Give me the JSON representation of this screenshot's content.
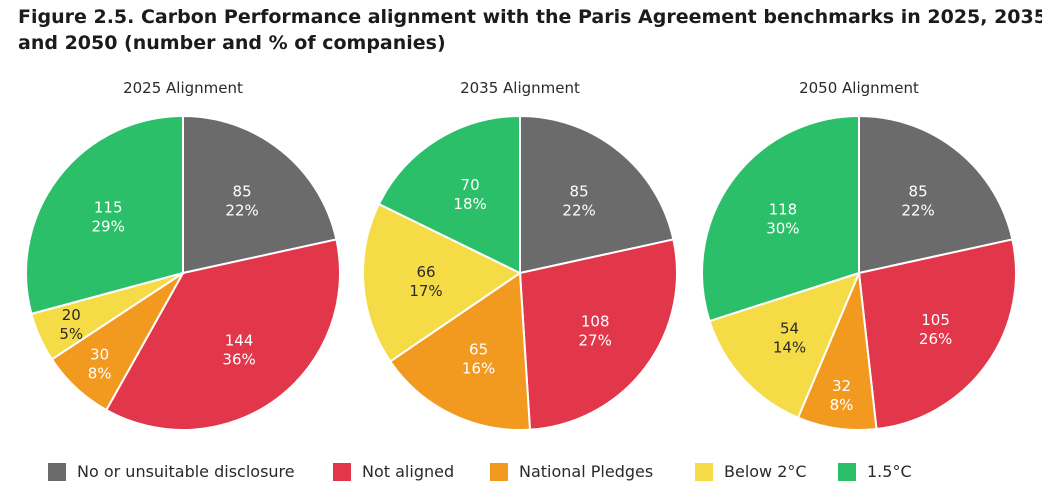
{
  "figure": {
    "title_line1": "Figure 2.5. Carbon Performance alignment with the Paris Agreement benchmarks in 2025, 2035",
    "title_line2": "and 2050 (number and % of companies)"
  },
  "colors": {
    "no_disclosure": "#6b6b6b",
    "not_aligned": "#e2374a",
    "national_pledges": "#f29a1f",
    "below_2c": "#f5dc47",
    "one_point_five": "#2cbf6a"
  },
  "chart_data": [
    {
      "type": "pie",
      "title": "2025 Alignment",
      "start": "12 o'clock, clockwise",
      "slices": [
        {
          "category": "No or unsuitable disclosure",
          "value": 85,
          "percent": "22%"
        },
        {
          "category": "Not aligned",
          "value": 144,
          "percent": "36%"
        },
        {
          "category": "National Pledges",
          "value": 30,
          "percent": "8%"
        },
        {
          "category": "Below 2°C",
          "value": 20,
          "percent": "5%"
        },
        {
          "category": "1.5°C",
          "value": 115,
          "percent": "29%"
        }
      ]
    },
    {
      "type": "pie",
      "title": "2035 Alignment",
      "start": "12 o'clock, clockwise",
      "slices": [
        {
          "category": "No or unsuitable disclosure",
          "value": 85,
          "percent": "22%"
        },
        {
          "category": "Not aligned",
          "value": 108,
          "percent": "27%"
        },
        {
          "category": "National Pledges",
          "value": 65,
          "percent": "16%"
        },
        {
          "category": "Below 2°C",
          "value": 66,
          "percent": "17%"
        },
        {
          "category": "1.5°C",
          "value": 70,
          "percent": "18%"
        }
      ]
    },
    {
      "type": "pie",
      "title": "2050 Alignment",
      "start": "12 o'clock, clockwise",
      "slices": [
        {
          "category": "No or unsuitable disclosure",
          "value": 85,
          "percent": "22%"
        },
        {
          "category": "Not aligned",
          "value": 105,
          "percent": "26%"
        },
        {
          "category": "National Pledges",
          "value": 32,
          "percent": "8%"
        },
        {
          "category": "Below 2°C",
          "value": 54,
          "percent": "14%"
        },
        {
          "category": "1.5°C",
          "value": 118,
          "percent": "30%"
        }
      ]
    }
  ],
  "legend": [
    {
      "label": "No or unsuitable disclosure",
      "color": "#6b6b6b"
    },
    {
      "label": "Not aligned",
      "color": "#e2374a"
    },
    {
      "label": "National Pledges",
      "color": "#f29a1f"
    },
    {
      "label": "Below 2°C",
      "color": "#f5dc47"
    },
    {
      "label": "1.5°C",
      "color": "#2cbf6a"
    }
  ]
}
